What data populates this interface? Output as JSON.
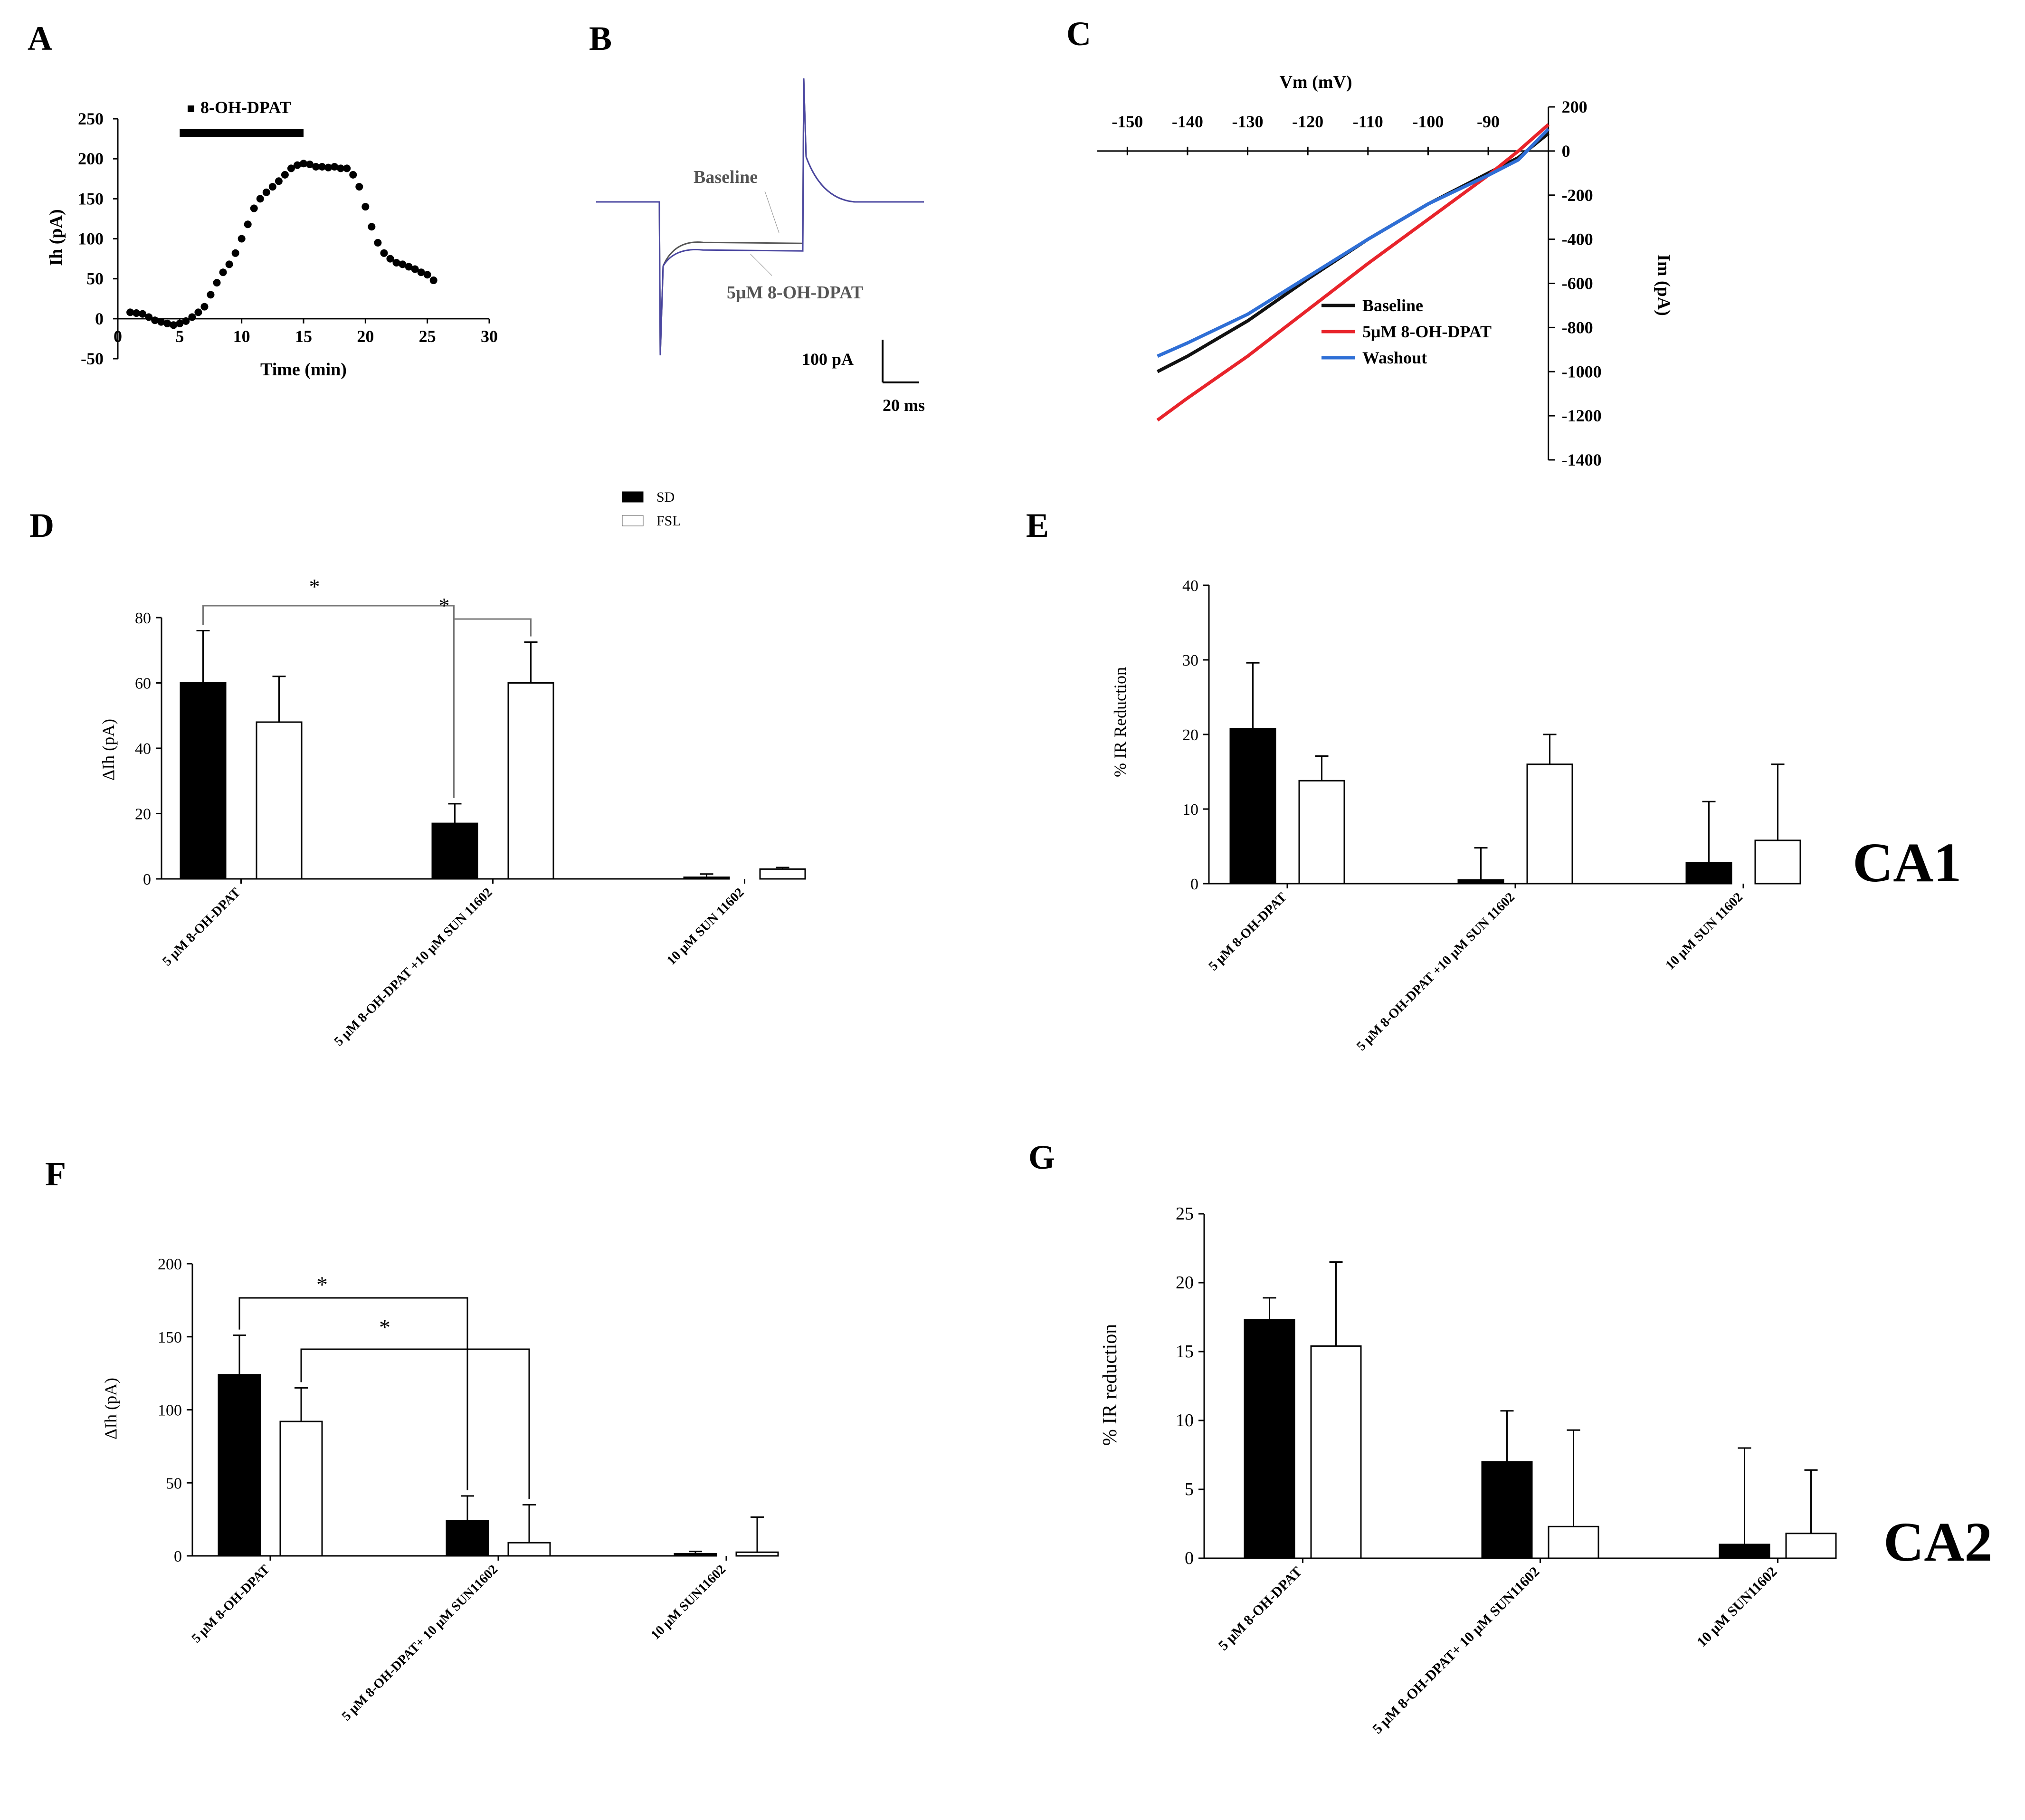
{
  "panel_labels": {
    "A": "A",
    "B": "B",
    "C": "C",
    "D": "D",
    "E": "E",
    "F": "F",
    "G": "G"
  },
  "region_labels": {
    "ca1": "CA1",
    "ca2": "CA2"
  },
  "chart_data": [
    {
      "id": "A",
      "type": "scatter",
      "title": "",
      "xlabel": "Time (min)",
      "ylabel": "Ih (pA)",
      "xlim": [
        0,
        30
      ],
      "ylim": [
        -50,
        250
      ],
      "xticks": [
        0,
        5,
        10,
        15,
        20,
        25,
        30
      ],
      "yticks": [
        -50,
        0,
        50,
        100,
        150,
        200,
        250
      ],
      "drug_bar": {
        "label": "8-OH-DPAT",
        "start": 5,
        "end": 15
      },
      "x": [
        1,
        1.5,
        2,
        2.5,
        3,
        3.5,
        4,
        4.5,
        5,
        5.5,
        6,
        6.5,
        7,
        7.5,
        8,
        8.5,
        9,
        9.5,
        10,
        10.5,
        11,
        11.5,
        12,
        12.5,
        13,
        13.5,
        14,
        14.5,
        15,
        15.5,
        16,
        16.5,
        17,
        17.5,
        18,
        18.5,
        19,
        19.5,
        20,
        20.5,
        21,
        21.5,
        22,
        22.5,
        23,
        23.5,
        24,
        24.5,
        25,
        25.5
      ],
      "y": [
        8,
        7,
        6,
        2,
        -2,
        -4,
        -6,
        -8,
        -6,
        -3,
        2,
        8,
        15,
        30,
        45,
        58,
        68,
        82,
        100,
        118,
        138,
        150,
        158,
        165,
        172,
        180,
        188,
        192,
        194,
        193,
        190,
        190,
        189,
        190,
        188,
        188,
        180,
        165,
        140,
        115,
        95,
        82,
        75,
        70,
        68,
        65,
        62,
        58,
        55,
        48
      ]
    },
    {
      "id": "B",
      "type": "line",
      "title": "",
      "series": [
        {
          "name": "Baseline",
          "color": "#555555",
          "values": [
            108
          ]
        },
        {
          "name": "5μM 8-OH-DPAT",
          "color": "#4a46a0",
          "values": [
            98
          ]
        }
      ],
      "annotations": [
        "Baseline",
        "5μM 8-OH-DPAT"
      ],
      "scale_bar": {
        "y_label": "100 pA",
        "x_label": "20 ms"
      }
    },
    {
      "id": "C",
      "type": "line",
      "title": "",
      "xlabel": "Vm (mV)",
      "ylabel": "Im (pA)",
      "xlim": [
        -155,
        -78
      ],
      "ylim": [
        -1400,
        200
      ],
      "xticks": [
        -150,
        -140,
        -130,
        -120,
        -110,
        -100,
        -90
      ],
      "yticks": [
        200,
        0,
        -200,
        -400,
        -600,
        -800,
        -1000,
        -1200,
        -1400
      ],
      "x": [
        -145,
        -140,
        -130,
        -120,
        -110,
        -100,
        -90,
        -85,
        -80
      ],
      "series": [
        {
          "name": "Baseline",
          "color": "#111111",
          "values": [
            -1000,
            -930,
            -770,
            -580,
            -400,
            -240,
            -100,
            -30,
            80
          ]
        },
        {
          "name": "5μM 8-OH-DPAT",
          "color": "#e8242b",
          "values": [
            -1220,
            -1120,
            -930,
            -720,
            -510,
            -310,
            -110,
            0,
            120
          ]
        },
        {
          "name": "Washout",
          "color": "#2f6fd6",
          "values": [
            -930,
            -870,
            -740,
            -570,
            -400,
            -240,
            -110,
            -40,
            100
          ]
        }
      ]
    },
    {
      "id": "D",
      "type": "bar",
      "title": "",
      "xlabel": "",
      "ylabel": "ΔIh (pA)",
      "ylim": [
        0,
        80
      ],
      "yticks": [
        0,
        20,
        40,
        60,
        80
      ],
      "categories": [
        "5 μM 8-OH-DPAT",
        "5 μM 8-OH-DPAT +10 μM SUN 11602",
        "10 μM SUN 11602"
      ],
      "legend": [
        "SD",
        "FSL"
      ],
      "series": [
        {
          "name": "SD",
          "color": "#000000",
          "values": [
            60,
            17,
            0.5
          ],
          "errors": [
            16,
            6,
            1
          ]
        },
        {
          "name": "FSL",
          "color": "#ffffff",
          "values": [
            48,
            60,
            3
          ],
          "errors": [
            14,
            12.5,
            0.5
          ]
        }
      ],
      "significance": [
        "*",
        "*"
      ]
    },
    {
      "id": "E",
      "type": "bar",
      "title": "",
      "xlabel": "",
      "ylabel": "% IR Reduction",
      "ylim": [
        0,
        40
      ],
      "yticks": [
        0,
        10,
        20,
        30,
        40
      ],
      "categories": [
        "5 μM 8-OH-DPAT",
        "5 μM 8-OH-DPAT +10 μM SUN 11602",
        "10 μM SUN 11602"
      ],
      "series": [
        {
          "name": "SD",
          "color": "#000000",
          "values": [
            20.8,
            0.5,
            2.8
          ],
          "errors": [
            8.8,
            4.3,
            8.2
          ]
        },
        {
          "name": "FSL",
          "color": "#ffffff",
          "values": [
            13.8,
            16,
            5.8
          ],
          "errors": [
            3.3,
            4,
            10.2
          ]
        }
      ]
    },
    {
      "id": "F",
      "type": "bar",
      "title": "",
      "xlabel": "",
      "ylabel": "ΔIh (pA)",
      "ylim": [
        0,
        200
      ],
      "yticks": [
        0,
        50,
        100,
        150,
        200
      ],
      "categories": [
        "5 μM 8-OH-DPAT",
        "5 μM 8-OH-DPAT+ 10 μM SUN11602",
        "10 μM SUN11602"
      ],
      "series": [
        {
          "name": "SD",
          "color": "#000000",
          "values": [
            124,
            24,
            1.5
          ],
          "errors": [
            27,
            17,
            1.5
          ]
        },
        {
          "name": "FSL",
          "color": "#ffffff",
          "values": [
            92,
            9,
            2.5
          ],
          "errors": [
            23,
            26,
            24
          ]
        }
      ],
      "significance": [
        "*",
        "*"
      ]
    },
    {
      "id": "G",
      "type": "bar",
      "title": "",
      "xlabel": "",
      "ylabel": "% IR reduction",
      "ylim": [
        0,
        25
      ],
      "yticks": [
        0,
        5,
        10,
        15,
        20,
        25
      ],
      "categories": [
        "5 μM 8-OH-DPAT",
        "5 μM 8-OH-DPAT+ 10 μM SUN11602",
        "10 μM SUN11602"
      ],
      "series": [
        {
          "name": "SD",
          "color": "#000000",
          "values": [
            17.3,
            7,
            1
          ],
          "errors": [
            1.6,
            3.7,
            7
          ]
        },
        {
          "name": "FSL",
          "color": "#ffffff",
          "values": [
            15.4,
            2.3,
            1.8
          ],
          "errors": [
            6.1,
            7,
            4.6
          ]
        }
      ]
    }
  ]
}
